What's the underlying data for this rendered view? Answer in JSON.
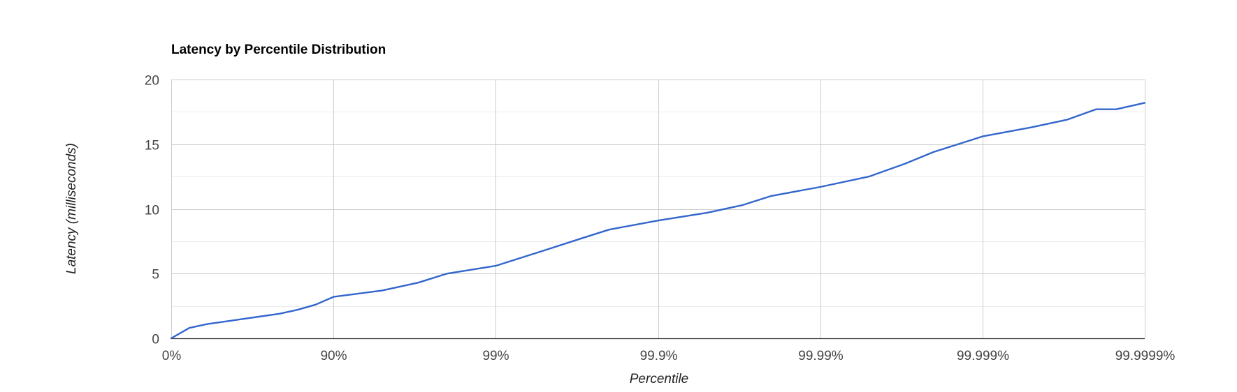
{
  "chart_data": {
    "type": "line",
    "title": "Latency by Percentile Distribution",
    "xlabel": "Percentile",
    "ylabel": "Latency (milliseconds)",
    "x_scale": "log-nines",
    "x_tick_labels": [
      "0%",
      "90%",
      "99%",
      "99.9%",
      "99.99%",
      "99.999%",
      "99.9999%"
    ],
    "y_ticks": [
      0,
      5,
      10,
      15,
      20
    ],
    "ylim": [
      0,
      20
    ],
    "grid": true,
    "minor_grid": true,
    "legend": "none",
    "colors": {
      "series": "#3366cc",
      "grid_major": "#cccccc",
      "grid_minor": "#ebebeb",
      "baseline": "#333333"
    },
    "series": [
      {
        "color": "#3366cc",
        "points": [
          {
            "x": "0%",
            "y": 0
          },
          {
            "x": "10%",
            "y": 0.8
          },
          {
            "x": "20%",
            "y": 1.1
          },
          {
            "x": "30%",
            "y": 1.3
          },
          {
            "x": "40%",
            "y": 1.5
          },
          {
            "x": "50%",
            "y": 1.7
          },
          {
            "x": "60%",
            "y": 1.9
          },
          {
            "x": "70%",
            "y": 2.2
          },
          {
            "x": "80%",
            "y": 2.6
          },
          {
            "x": "90%",
            "y": 3.2
          },
          {
            "x": "95%",
            "y": 3.7
          },
          {
            "x": "97%",
            "y": 4.3
          },
          {
            "x": "98%",
            "y": 5.0
          },
          {
            "x": "99%",
            "y": 5.6
          },
          {
            "x": "99.5%",
            "y": 6.8
          },
          {
            "x": "99.7%",
            "y": 7.7
          },
          {
            "x": "99.8%",
            "y": 8.4
          },
          {
            "x": "99.9%",
            "y": 9.1
          },
          {
            "x": "99.95%",
            "y": 9.7
          },
          {
            "x": "99.97%",
            "y": 10.3
          },
          {
            "x": "99.98%",
            "y": 11.0
          },
          {
            "x": "99.99%",
            "y": 11.7
          },
          {
            "x": "99.995%",
            "y": 12.5
          },
          {
            "x": "99.997%",
            "y": 13.5
          },
          {
            "x": "99.998%",
            "y": 14.4
          },
          {
            "x": "99.999%",
            "y": 15.6
          },
          {
            "x": "99.9995%",
            "y": 16.3
          },
          {
            "x": "99.9997%",
            "y": 16.9
          },
          {
            "x": "99.9998%",
            "y": 17.7
          },
          {
            "x": "99.99985%",
            "y": 17.7
          },
          {
            "x": "99.9999%",
            "y": 18.2
          }
        ]
      }
    ]
  }
}
